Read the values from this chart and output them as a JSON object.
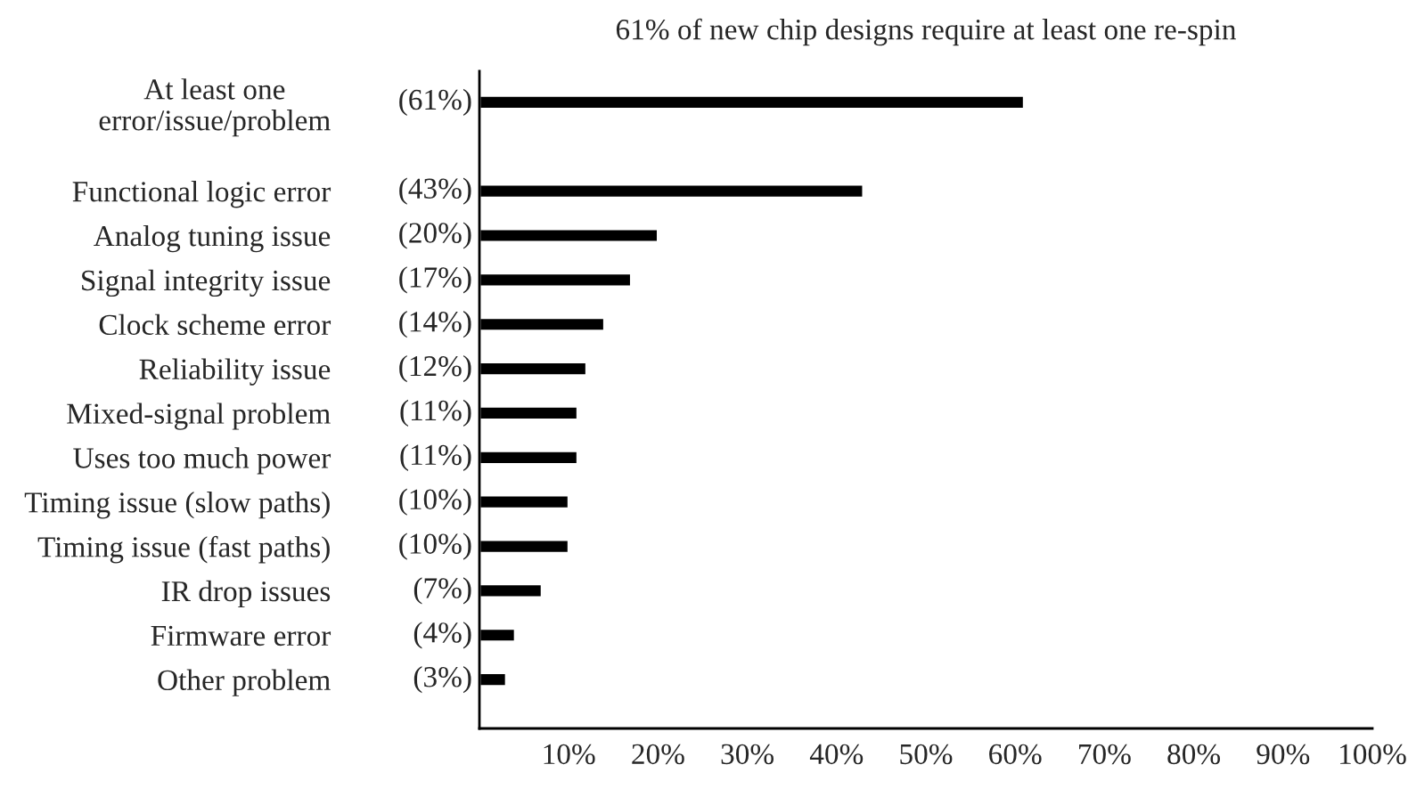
{
  "chart_data": {
    "type": "bar",
    "orientation": "horizontal",
    "title": "61% of new chip designs require at least one re-spin",
    "categories": [
      "At least one\nerror/issue/problem",
      null,
      "Functional logic error",
      "Analog tuning issue",
      "Signal integrity issue",
      "Clock scheme error",
      "Reliability issue",
      "Mixed-signal problem",
      "Uses too much power",
      "Timing issue (slow paths)",
      "Timing issue (fast paths)",
      "IR drop issues",
      "Firmware error",
      "Other problem"
    ],
    "values": [
      61,
      null,
      43,
      20,
      17,
      14,
      12,
      11,
      11,
      10,
      10,
      7,
      4,
      3
    ],
    "value_labels": [
      "(61%)",
      null,
      "(43%)",
      "(20%)",
      "(17%)",
      "(14%)",
      "(12%)",
      "(11%)",
      "(11%)",
      "(10%)",
      "(10%)",
      "(7%)",
      "(4%)",
      "(3%)"
    ],
    "color": "#000000",
    "xlim": [
      0,
      100
    ],
    "xticks": [
      {
        "value": 10,
        "label": "10%"
      },
      {
        "value": 20,
        "label": "20%"
      },
      {
        "value": 30,
        "label": "30%"
      },
      {
        "value": 40,
        "label": "40%"
      },
      {
        "value": 50,
        "label": "50%"
      },
      {
        "value": 60,
        "label": "60%"
      },
      {
        "value": 70,
        "label": "70%"
      },
      {
        "value": 80,
        "label": "80%"
      },
      {
        "value": 90,
        "label": "90%"
      },
      {
        "value": 100,
        "label": "100%"
      }
    ],
    "grid": false,
    "legend": false
  }
}
